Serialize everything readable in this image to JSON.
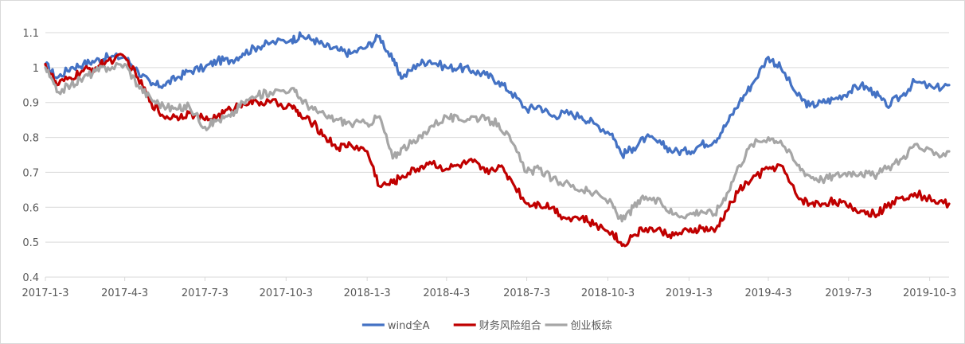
{
  "chart_data": {
    "type": "line",
    "title": "",
    "xlabel": "",
    "ylabel": "",
    "ylim": [
      0.4,
      1.1
    ],
    "yticks": [
      0.4,
      0.5,
      0.6,
      0.7,
      0.8,
      0.9,
      1,
      1.1
    ],
    "ytick_labels": [
      "0.4",
      "0.5",
      "0.6",
      "0.7",
      "0.8",
      "0.9",
      "1",
      "1.1"
    ],
    "xticks": [
      "2017-1-3",
      "2017-4-3",
      "2017-7-3",
      "2017-10-3",
      "2018-1-3",
      "2018-4-3",
      "2018-7-3",
      "2018-10-3",
      "2019-1-3",
      "2019-4-3",
      "2019-7-3",
      "2019-10-3"
    ],
    "xlim": [
      "2017-01-03",
      "2019-10-25"
    ],
    "grid": "horizontal",
    "legend_position": "bottom",
    "x": [
      "2017-01-03",
      "2017-01-16",
      "2017-02-01",
      "2017-02-15",
      "2017-03-01",
      "2017-03-15",
      "2017-04-03",
      "2017-04-18",
      "2017-05-03",
      "2017-05-17",
      "2017-06-01",
      "2017-06-15",
      "2017-07-03",
      "2017-07-17",
      "2017-08-01",
      "2017-08-15",
      "2017-09-01",
      "2017-09-15",
      "2017-10-09",
      "2017-10-20",
      "2017-11-03",
      "2017-11-17",
      "2017-12-01",
      "2017-12-15",
      "2018-01-03",
      "2018-01-17",
      "2018-02-01",
      "2018-02-12",
      "2018-03-01",
      "2018-03-15",
      "2018-04-03",
      "2018-04-17",
      "2018-05-03",
      "2018-05-17",
      "2018-06-01",
      "2018-06-15",
      "2018-07-03",
      "2018-07-17",
      "2018-08-01",
      "2018-08-15",
      "2018-09-03",
      "2018-09-17",
      "2018-10-08",
      "2018-10-19",
      "2018-11-01",
      "2018-11-15",
      "2018-12-03",
      "2018-12-17",
      "2019-01-03",
      "2019-01-17",
      "2019-02-01",
      "2019-02-15",
      "2019-03-01",
      "2019-03-15",
      "2019-04-03",
      "2019-04-17",
      "2019-05-06",
      "2019-05-20",
      "2019-06-03",
      "2019-06-17",
      "2019-07-03",
      "2019-07-17",
      "2019-08-01",
      "2019-08-15",
      "2019-09-02",
      "2019-09-16",
      "2019-10-08",
      "2019-10-25"
    ],
    "series": [
      {
        "name": "wind全A",
        "color": "#4472C4",
        "values": [
          1.01,
          0.97,
          1.0,
          1.01,
          1.02,
          1.03,
          1.03,
          0.99,
          0.95,
          0.95,
          0.97,
          0.99,
          1.0,
          1.02,
          1.02,
          1.04,
          1.06,
          1.07,
          1.08,
          1.09,
          1.08,
          1.06,
          1.05,
          1.04,
          1.06,
          1.09,
          1.02,
          0.97,
          1.01,
          1.02,
          1.0,
          1.0,
          0.99,
          0.98,
          0.96,
          0.93,
          0.88,
          0.89,
          0.86,
          0.87,
          0.86,
          0.84,
          0.81,
          0.75,
          0.77,
          0.8,
          0.78,
          0.76,
          0.76,
          0.78,
          0.79,
          0.84,
          0.9,
          0.95,
          1.03,
          1.0,
          0.92,
          0.89,
          0.9,
          0.91,
          0.93,
          0.95,
          0.93,
          0.89,
          0.92,
          0.96,
          0.94,
          0.95
        ]
      },
      {
        "name": "财务风险组合",
        "color": "#C00000",
        "values": [
          1.01,
          0.95,
          0.97,
          0.99,
          1.0,
          1.02,
          1.03,
          0.97,
          0.9,
          0.86,
          0.86,
          0.87,
          0.85,
          0.86,
          0.88,
          0.9,
          0.9,
          0.9,
          0.89,
          0.86,
          0.84,
          0.8,
          0.77,
          0.78,
          0.76,
          0.66,
          0.67,
          0.69,
          0.71,
          0.73,
          0.71,
          0.72,
          0.73,
          0.7,
          0.72,
          0.68,
          0.61,
          0.61,
          0.6,
          0.57,
          0.57,
          0.55,
          0.53,
          0.49,
          0.52,
          0.54,
          0.53,
          0.52,
          0.53,
          0.54,
          0.53,
          0.59,
          0.65,
          0.68,
          0.71,
          0.72,
          0.63,
          0.61,
          0.61,
          0.62,
          0.6,
          0.59,
          0.58,
          0.6,
          0.63,
          0.64,
          0.62,
          0.61
        ]
      },
      {
        "name": "创业板综",
        "color": "#A6A6A6",
        "values": [
          1.0,
          0.93,
          0.95,
          0.97,
          0.99,
          1.0,
          1.01,
          0.95,
          0.91,
          0.89,
          0.88,
          0.89,
          0.83,
          0.85,
          0.86,
          0.9,
          0.92,
          0.93,
          0.94,
          0.91,
          0.88,
          0.86,
          0.85,
          0.84,
          0.84,
          0.86,
          0.74,
          0.77,
          0.79,
          0.83,
          0.86,
          0.85,
          0.86,
          0.85,
          0.84,
          0.79,
          0.7,
          0.71,
          0.68,
          0.67,
          0.65,
          0.64,
          0.61,
          0.56,
          0.6,
          0.63,
          0.61,
          0.58,
          0.58,
          0.59,
          0.58,
          0.64,
          0.72,
          0.78,
          0.8,
          0.79,
          0.72,
          0.69,
          0.68,
          0.69,
          0.7,
          0.7,
          0.69,
          0.71,
          0.74,
          0.78,
          0.75,
          0.76
        ]
      }
    ]
  }
}
